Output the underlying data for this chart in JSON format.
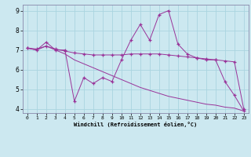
{
  "xlabel": "Windchill (Refroidissement éolien,°C)",
  "bg_color": "#cce8f0",
  "line_color": "#993399",
  "grid_color": "#aad4e0",
  "x_values": [
    0,
    1,
    2,
    3,
    4,
    5,
    6,
    7,
    8,
    9,
    10,
    11,
    12,
    13,
    14,
    15,
    16,
    17,
    18,
    19,
    20,
    21,
    22,
    23
  ],
  "line1": [
    7.1,
    7.0,
    7.4,
    7.0,
    7.0,
    4.4,
    5.6,
    5.3,
    5.6,
    5.4,
    6.5,
    7.5,
    8.3,
    7.5,
    8.8,
    9.0,
    7.3,
    6.8,
    6.6,
    6.5,
    6.5,
    5.4,
    4.7,
    3.9
  ],
  "line2": [
    7.1,
    7.05,
    7.2,
    7.05,
    6.95,
    6.85,
    6.8,
    6.75,
    6.75,
    6.75,
    6.75,
    6.8,
    6.8,
    6.8,
    6.8,
    6.75,
    6.7,
    6.65,
    6.6,
    6.55,
    6.5,
    6.45,
    6.4,
    4.0
  ],
  "line3": [
    7.1,
    7.0,
    7.2,
    7.0,
    6.8,
    6.5,
    6.3,
    6.1,
    5.9,
    5.7,
    5.5,
    5.3,
    5.1,
    4.95,
    4.8,
    4.65,
    4.55,
    4.45,
    4.35,
    4.25,
    4.2,
    4.1,
    4.05,
    3.9
  ],
  "ylim": [
    4,
    9
  ],
  "xlim": [
    0,
    23
  ],
  "yticks": [
    4,
    5,
    6,
    7,
    8,
    9
  ],
  "xticks": [
    0,
    1,
    2,
    3,
    4,
    5,
    6,
    7,
    8,
    9,
    10,
    11,
    12,
    13,
    14,
    15,
    16,
    17,
    18,
    19,
    20,
    21,
    22,
    23
  ],
  "figsize": [
    3.2,
    2.0
  ],
  "dpi": 100
}
